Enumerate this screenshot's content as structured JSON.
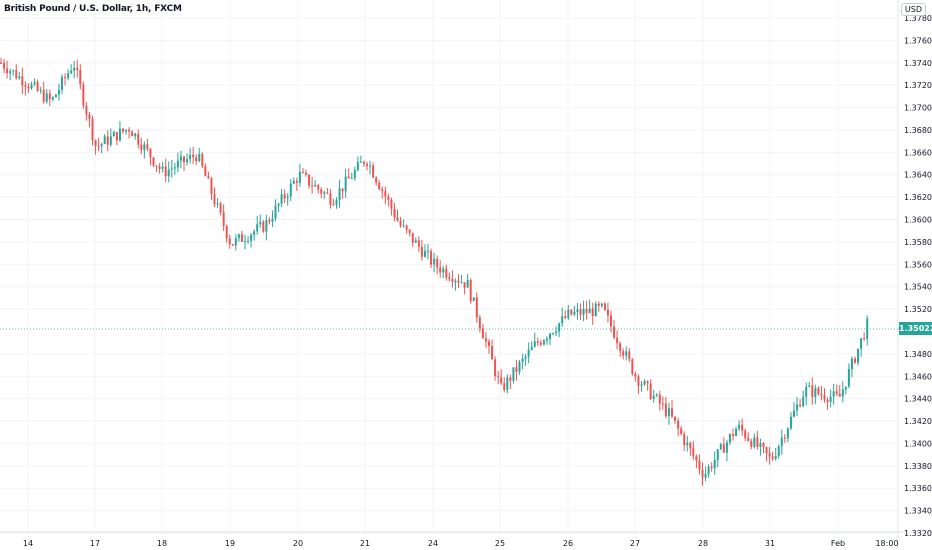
{
  "title": "British Pound / U.S. Dollar, 1h, FXCM",
  "currency_label": "USD",
  "last_price_label": "1.35022",
  "colors": {
    "up": "#26a69a",
    "down": "#ef5350",
    "grid": "#f0f3fa",
    "price_line": "#26a69a"
  },
  "chart_data": {
    "type": "candlestick",
    "title": "British Pound / U.S. Dollar, 1h, FXCM",
    "ylabel": "USD",
    "ylim": [
      1.332,
      1.378
    ],
    "y_ticks": [
      1.378,
      1.376,
      1.374,
      1.372,
      1.37,
      1.368,
      1.366,
      1.364,
      1.362,
      1.36,
      1.358,
      1.356,
      1.354,
      1.352,
      1.348,
      1.346,
      1.344,
      1.342,
      1.34,
      1.338,
      1.336,
      1.334,
      1.332
    ],
    "y_tick_labels": [
      "1.37800",
      "1.37600",
      "1.37400",
      "1.37200",
      "1.37000",
      "1.36800",
      "1.36600",
      "1.36400",
      "1.36200",
      "1.36000",
      "1.35800",
      "1.35600",
      "1.35400",
      "1.35200",
      "1.34800",
      "1.34600",
      "1.34400",
      "1.34200",
      "1.34000",
      "1.33800",
      "1.33600",
      "1.33400",
      "1.33200"
    ],
    "x_tick_labels": [
      "14",
      "17",
      "18",
      "19",
      "20",
      "21",
      "24",
      "25",
      "26",
      "27",
      "28",
      "31",
      "Feb",
      "18:00"
    ],
    "last_price": 1.35022,
    "grid": true,
    "close_path": [
      {
        "day": "14",
        "price": 1.374
      },
      {
        "day": "14",
        "price": 1.3705
      },
      {
        "day": "14",
        "price": 1.374
      },
      {
        "day": "17",
        "price": 1.3665
      },
      {
        "day": "17",
        "price": 1.3682
      },
      {
        "day": "18",
        "price": 1.3642
      },
      {
        "day": "18",
        "price": 1.3658
      },
      {
        "day": "19",
        "price": 1.3578
      },
      {
        "day": "19",
        "price": 1.3595
      },
      {
        "day": "20",
        "price": 1.364
      },
      {
        "day": "20",
        "price": 1.3618
      },
      {
        "day": "21",
        "price": 1.3655
      },
      {
        "day": "21",
        "price": 1.3595
      },
      {
        "day": "24",
        "price": 1.356
      },
      {
        "day": "24",
        "price": 1.3542
      },
      {
        "day": "25",
        "price": 1.3448
      },
      {
        "day": "25",
        "price": 1.3488
      },
      {
        "day": "26",
        "price": 1.3515
      },
      {
        "day": "26",
        "price": 1.352
      },
      {
        "day": "27",
        "price": 1.346
      },
      {
        "day": "27",
        "price": 1.3425
      },
      {
        "day": "28",
        "price": 1.3372
      },
      {
        "day": "28",
        "price": 1.3415
      },
      {
        "day": "31",
        "price": 1.3385
      },
      {
        "day": "31",
        "price": 1.3448
      },
      {
        "day": "Feb",
        "price": 1.344
      },
      {
        "day": "Feb",
        "price": 1.351
      }
    ]
  }
}
